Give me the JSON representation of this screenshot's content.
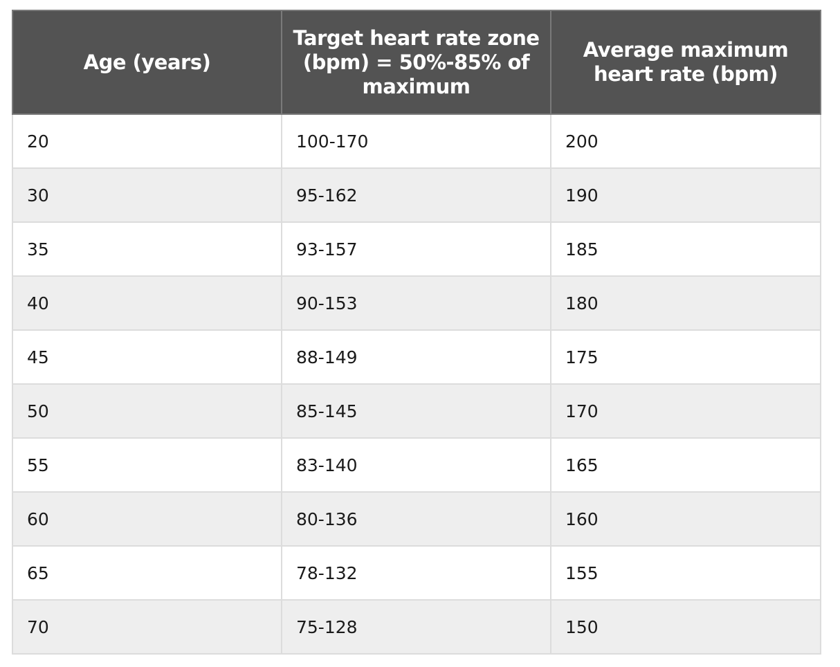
{
  "table": {
    "headers": [
      "Age (years)",
      "Target heart rate zone (bpm) = 50%-85% of maximum",
      "Average maximum heart rate (bpm)"
    ],
    "rows": [
      [
        "20",
        "100-170",
        "200"
      ],
      [
        "30",
        "95-162",
        "190"
      ],
      [
        "35",
        "93-157",
        "185"
      ],
      [
        "40",
        "90-153",
        "180"
      ],
      [
        "45",
        "88-149",
        "175"
      ],
      [
        "50",
        "85-145",
        "170"
      ],
      [
        "55",
        "83-140",
        "165"
      ],
      [
        "60",
        "80-136",
        "160"
      ],
      [
        "65",
        "78-132",
        "155"
      ],
      [
        "70",
        "75-128",
        "150"
      ]
    ]
  },
  "colors": {
    "header_background": "#535353",
    "header_text": "#ffffff",
    "row_even_background": "#eeeeee",
    "row_odd_background": "#ffffff",
    "border": "#dcdcdc"
  }
}
